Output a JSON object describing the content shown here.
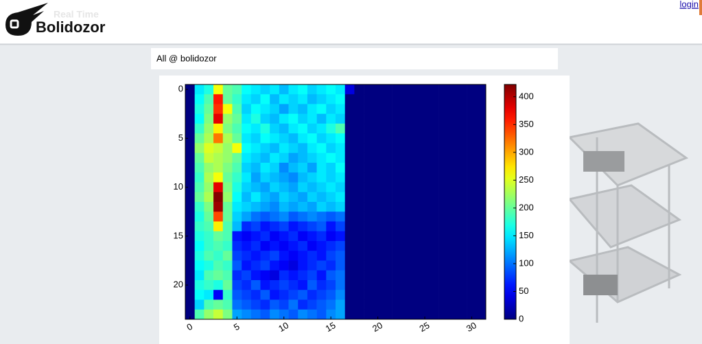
{
  "header": {
    "logo_subtitle": "Real Time",
    "logo_title": "Bolidozor",
    "login": "login"
  },
  "panel_title": "All @ bolidozor",
  "chart_data": {
    "type": "heatmap",
    "colormap": "jet",
    "xlim": [
      -0.5,
      31.5
    ],
    "ylim": [
      23.5,
      -0.5
    ],
    "xticks": [
      0,
      5,
      10,
      15,
      20,
      25,
      30
    ],
    "yticks": [
      0,
      5,
      10,
      15,
      20
    ],
    "clim": [
      0,
      422
    ],
    "cticks": [
      0,
      50,
      100,
      150,
      200,
      250,
      300,
      350,
      400
    ],
    "z": [
      [
        0,
        150,
        170,
        260,
        200,
        190,
        160,
        150,
        140,
        150,
        130,
        150,
        160,
        140,
        150,
        160,
        150,
        40,
        0,
        0,
        0,
        0,
        0,
        0,
        0,
        0,
        0,
        0,
        0,
        0,
        0,
        0
      ],
      [
        0,
        160,
        190,
        360,
        200,
        180,
        150,
        140,
        160,
        130,
        150,
        140,
        150,
        130,
        140,
        150,
        160,
        0,
        0,
        0,
        0,
        0,
        0,
        0,
        0,
        0,
        0,
        0,
        0,
        0,
        0,
        0
      ],
      [
        0,
        170,
        200,
        350,
        260,
        190,
        140,
        160,
        150,
        140,
        120,
        140,
        130,
        150,
        160,
        140,
        150,
        0,
        0,
        0,
        0,
        0,
        0,
        0,
        0,
        0,
        0,
        0,
        0,
        0,
        0,
        0
      ],
      [
        0,
        160,
        210,
        380,
        220,
        200,
        150,
        170,
        140,
        130,
        150,
        160,
        140,
        150,
        130,
        150,
        140,
        0,
        0,
        0,
        0,
        0,
        0,
        0,
        0,
        0,
        0,
        0,
        0,
        0,
        0,
        0
      ],
      [
        0,
        180,
        220,
        270,
        210,
        190,
        160,
        150,
        170,
        140,
        130,
        150,
        160,
        140,
        150,
        170,
        190,
        0,
        0,
        0,
        0,
        0,
        0,
        0,
        0,
        0,
        0,
        0,
        0,
        0,
        0,
        0
      ],
      [
        0,
        200,
        230,
        320,
        230,
        200,
        150,
        140,
        160,
        150,
        140,
        130,
        150,
        160,
        140,
        150,
        160,
        0,
        0,
        0,
        0,
        0,
        0,
        0,
        0,
        0,
        0,
        0,
        0,
        0,
        0,
        0
      ],
      [
        0,
        220,
        250,
        240,
        220,
        260,
        160,
        150,
        140,
        130,
        150,
        140,
        130,
        150,
        160,
        140,
        150,
        0,
        0,
        0,
        0,
        0,
        0,
        0,
        0,
        0,
        0,
        0,
        0,
        0,
        0,
        0
      ],
      [
        0,
        200,
        240,
        230,
        220,
        200,
        150,
        140,
        130,
        150,
        140,
        120,
        130,
        140,
        150,
        160,
        150,
        0,
        0,
        0,
        0,
        0,
        0,
        0,
        0,
        0,
        0,
        0,
        0,
        0,
        0,
        0
      ],
      [
        0,
        190,
        220,
        230,
        210,
        190,
        140,
        130,
        150,
        140,
        110,
        130,
        140,
        120,
        150,
        140,
        160,
        0,
        0,
        0,
        0,
        0,
        0,
        0,
        0,
        0,
        0,
        0,
        0,
        0,
        0,
        0
      ],
      [
        0,
        180,
        230,
        260,
        200,
        180,
        150,
        120,
        140,
        130,
        120,
        110,
        130,
        140,
        150,
        140,
        150,
        0,
        0,
        0,
        0,
        0,
        0,
        0,
        0,
        0,
        0,
        0,
        0,
        0,
        0,
        0
      ],
      [
        0,
        190,
        220,
        380,
        210,
        170,
        140,
        130,
        120,
        140,
        130,
        120,
        140,
        130,
        140,
        150,
        140,
        0,
        0,
        0,
        0,
        0,
        0,
        0,
        0,
        0,
        0,
        0,
        0,
        0,
        0,
        0
      ],
      [
        0,
        200,
        230,
        420,
        220,
        160,
        130,
        150,
        130,
        120,
        140,
        130,
        120,
        140,
        130,
        140,
        150,
        0,
        0,
        0,
        0,
        0,
        0,
        0,
        0,
        0,
        0,
        0,
        0,
        0,
        0,
        0
      ],
      [
        0,
        180,
        210,
        410,
        200,
        150,
        140,
        130,
        120,
        110,
        130,
        120,
        130,
        120,
        140,
        130,
        140,
        0,
        0,
        0,
        0,
        0,
        0,
        0,
        0,
        0,
        0,
        0,
        0,
        0,
        0,
        0
      ],
      [
        0,
        170,
        200,
        340,
        200,
        140,
        120,
        100,
        90,
        100,
        110,
        90,
        100,
        110,
        100,
        90,
        100,
        0,
        0,
        0,
        0,
        0,
        0,
        0,
        0,
        0,
        0,
        0,
        0,
        0,
        0,
        0
      ],
      [
        0,
        180,
        190,
        270,
        190,
        130,
        70,
        80,
        60,
        70,
        80,
        60,
        70,
        80,
        90,
        60,
        80,
        0,
        0,
        0,
        0,
        0,
        0,
        0,
        0,
        0,
        0,
        0,
        0,
        0,
        0,
        0
      ],
      [
        0,
        170,
        180,
        200,
        190,
        60,
        50,
        60,
        70,
        50,
        60,
        70,
        50,
        60,
        70,
        50,
        60,
        0,
        0,
        0,
        0,
        0,
        0,
        0,
        0,
        0,
        0,
        0,
        0,
        0,
        0,
        0
      ],
      [
        0,
        160,
        180,
        190,
        180,
        70,
        60,
        70,
        50,
        60,
        50,
        60,
        70,
        50,
        60,
        70,
        80,
        0,
        0,
        0,
        0,
        0,
        0,
        0,
        0,
        0,
        0,
        0,
        0,
        0,
        0,
        0
      ],
      [
        0,
        170,
        190,
        180,
        200,
        80,
        70,
        60,
        70,
        80,
        60,
        50,
        60,
        70,
        60,
        80,
        90,
        0,
        0,
        0,
        0,
        0,
        0,
        0,
        0,
        0,
        0,
        0,
        0,
        0,
        0,
        0
      ],
      [
        0,
        160,
        170,
        190,
        180,
        90,
        60,
        70,
        80,
        60,
        50,
        40,
        60,
        70,
        80,
        70,
        90,
        0,
        0,
        0,
        0,
        0,
        0,
        0,
        0,
        0,
        0,
        0,
        0,
        0,
        0,
        0
      ],
      [
        0,
        150,
        190,
        200,
        190,
        70,
        80,
        60,
        50,
        40,
        70,
        60,
        70,
        80,
        60,
        90,
        100,
        0,
        0,
        0,
        0,
        0,
        0,
        0,
        0,
        0,
        0,
        0,
        0,
        0,
        0,
        0
      ],
      [
        0,
        170,
        180,
        170,
        200,
        80,
        70,
        90,
        60,
        70,
        80,
        70,
        60,
        90,
        70,
        80,
        100,
        0,
        0,
        0,
        0,
        0,
        0,
        0,
        0,
        0,
        0,
        0,
        0,
        0,
        0,
        0
      ],
      [
        0,
        160,
        150,
        50,
        180,
        90,
        80,
        70,
        90,
        60,
        70,
        80,
        90,
        70,
        80,
        90,
        110,
        0,
        0,
        0,
        0,
        0,
        0,
        0,
        0,
        0,
        0,
        0,
        0,
        0,
        0,
        0
      ],
      [
        0,
        140,
        190,
        200,
        190,
        100,
        90,
        80,
        70,
        90,
        80,
        100,
        70,
        80,
        90,
        100,
        120,
        0,
        0,
        0,
        0,
        0,
        0,
        0,
        0,
        0,
        0,
        0,
        0,
        0,
        0,
        0
      ],
      [
        0,
        190,
        220,
        240,
        210,
        120,
        110,
        100,
        90,
        110,
        100,
        90,
        110,
        100,
        90,
        110,
        120,
        0,
        0,
        0,
        0,
        0,
        0,
        0,
        0,
        0,
        0,
        0,
        0,
        0,
        0,
        0
      ]
    ]
  }
}
